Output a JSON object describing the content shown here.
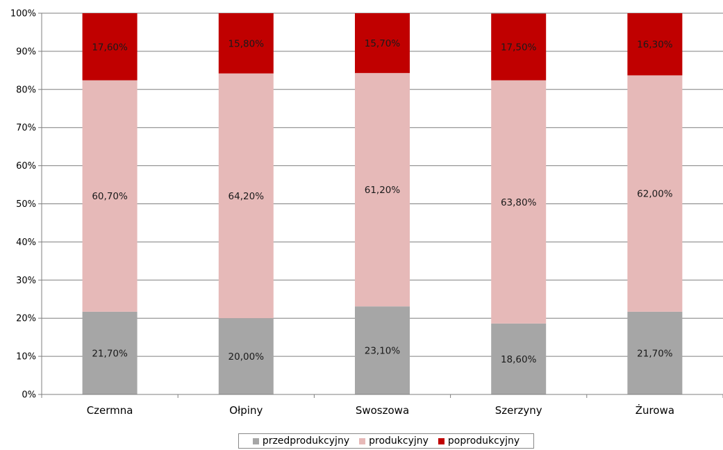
{
  "chart_data": {
    "type": "bar",
    "stacked": true,
    "categories": [
      "Czermna",
      "Ołpiny",
      "Swoszowa",
      "Szerzyny",
      "Żurowa"
    ],
    "series": [
      {
        "name": "przedprodukcyjny",
        "color": "#a6a6a6",
        "values": [
          21.7,
          20.0,
          23.1,
          18.6,
          21.7
        ],
        "labels": [
          "21,70%",
          "20,00%",
          "23,10%",
          "18,60%",
          "21,70%"
        ]
      },
      {
        "name": "produkcyjny",
        "color": "#e6b9b8",
        "values": [
          60.7,
          64.2,
          61.2,
          63.8,
          62.0
        ],
        "labels": [
          "60,70%",
          "64,20%",
          "61,20%",
          "63,80%",
          "62,00%"
        ]
      },
      {
        "name": "poprodukcyjny",
        "color": "#c00000",
        "values": [
          17.6,
          15.8,
          15.7,
          17.5,
          16.3
        ],
        "labels": [
          "17,60%",
          "15,80%",
          "15,70%",
          "17,50%",
          "16,30%"
        ]
      }
    ],
    "y_ticks": [
      "0%",
      "10%",
      "20%",
      "30%",
      "40%",
      "50%",
      "60%",
      "70%",
      "80%",
      "90%",
      "100%"
    ],
    "ylim": [
      0,
      100
    ],
    "grid": true,
    "legend_position": "bottom",
    "title": "",
    "xlabel": "",
    "ylabel": ""
  }
}
